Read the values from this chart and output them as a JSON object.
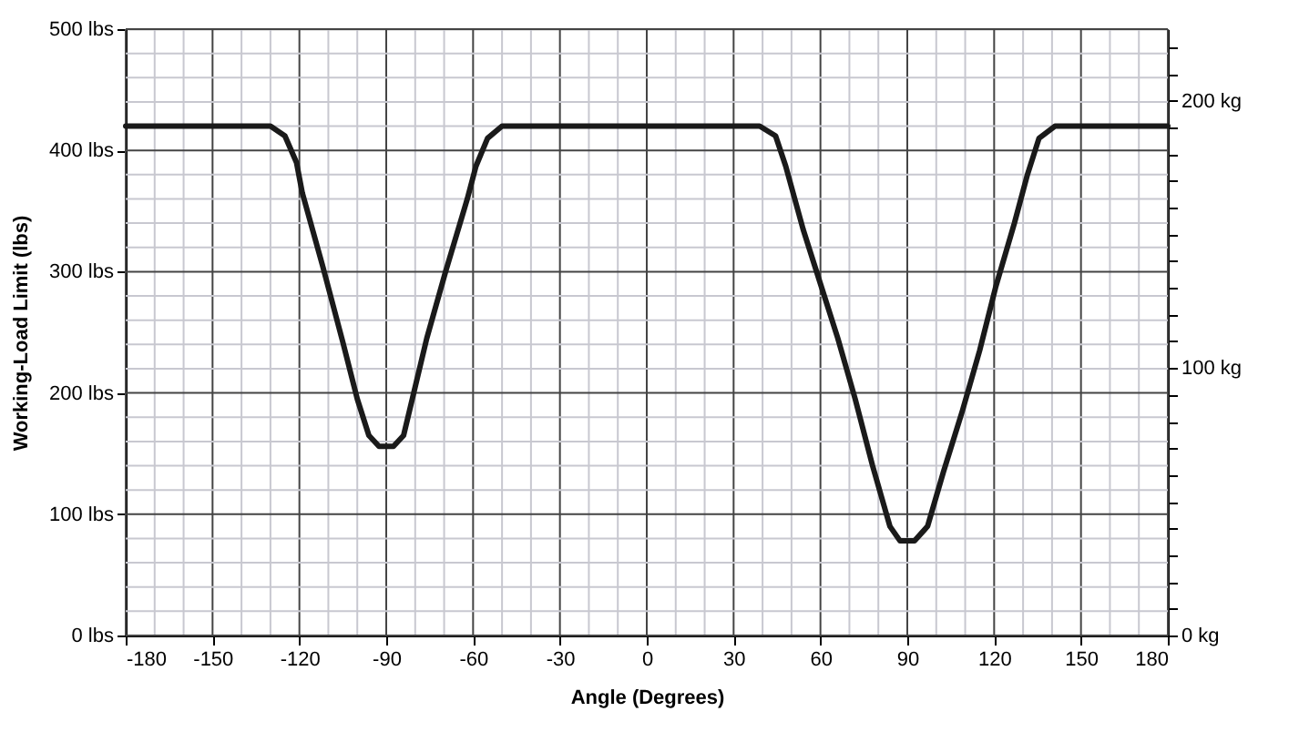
{
  "chart_data": {
    "type": "line",
    "xlabel": "Angle (Degrees)",
    "ylabel": "Working-Load Limit (lbs)",
    "xlim": [
      -180,
      180
    ],
    "xticks": [
      -180,
      {
        "value": -170,
        "label": null
      },
      {
        "value": -160,
        "label": null
      },
      -150,
      {
        "value": -140,
        "label": null
      },
      {
        "value": -130,
        "label": null
      },
      -120,
      {
        "value": -110,
        "label": null
      },
      {
        "value": -100,
        "label": null
      },
      -90,
      {
        "value": -80,
        "label": null
      },
      {
        "value": -70,
        "label": null
      },
      -60,
      {
        "value": -50,
        "label": null
      },
      {
        "value": -40,
        "label": null
      },
      -30,
      {
        "value": -20,
        "label": null
      },
      {
        "value": -10,
        "label": null
      },
      0,
      {
        "value": 10,
        "label": null
      },
      {
        "value": 20,
        "label": null
      },
      30,
      {
        "value": 40,
        "label": null
      },
      {
        "value": 50,
        "label": null
      },
      60,
      {
        "value": 70,
        "label": null
      },
      {
        "value": 80,
        "label": null
      },
      90,
      {
        "value": 100,
        "label": null
      },
      {
        "value": 110,
        "label": null
      },
      120,
      {
        "value": 130,
        "label": null
      },
      {
        "value": 140,
        "label": null
      },
      150,
      {
        "value": 160,
        "label": null
      },
      {
        "value": 170,
        "label": null
      },
      180
    ],
    "ylim": [
      0,
      500
    ],
    "yticks": [
      {
        "value": 0,
        "label": "0 lbs"
      },
      {
        "value": 20,
        "label": null
      },
      {
        "value": 40,
        "label": null
      },
      {
        "value": 60,
        "label": null
      },
      {
        "value": 80,
        "label": null
      },
      {
        "value": 100,
        "label": "100 lbs"
      },
      {
        "value": 120,
        "label": null
      },
      {
        "value": 140,
        "label": null
      },
      {
        "value": 160,
        "label": null
      },
      {
        "value": 180,
        "label": null
      },
      {
        "value": 200,
        "label": "200 lbs"
      },
      {
        "value": 220,
        "label": null
      },
      {
        "value": 240,
        "label": null
      },
      {
        "value": 260,
        "label": null
      },
      {
        "value": 280,
        "label": null
      },
      {
        "value": 300,
        "label": "300 lbs"
      },
      {
        "value": 320,
        "label": null
      },
      {
        "value": 340,
        "label": null
      },
      {
        "value": 360,
        "label": null
      },
      {
        "value": 380,
        "label": null
      },
      {
        "value": 400,
        "label": "400 lbs"
      },
      {
        "value": 420,
        "label": null
      },
      {
        "value": 440,
        "label": null
      },
      {
        "value": 460,
        "label": null
      },
      {
        "value": 480,
        "label": null
      },
      {
        "value": 500,
        "label": "500 lbs"
      }
    ],
    "y2lim": [
      0,
      226.8
    ],
    "y2ticks": [
      {
        "value": 0,
        "label": "0 kg"
      },
      {
        "value": 10,
        "label": null
      },
      {
        "value": 20,
        "label": null
      },
      {
        "value": 30,
        "label": null
      },
      {
        "value": 40,
        "label": null
      },
      {
        "value": 50,
        "label": null
      },
      {
        "value": 60,
        "label": null
      },
      {
        "value": 70,
        "label": null
      },
      {
        "value": 80,
        "label": null
      },
      {
        "value": 90,
        "label": null
      },
      {
        "value": 100,
        "label": "100 kg"
      },
      {
        "value": 110,
        "label": null
      },
      {
        "value": 120,
        "label": null
      },
      {
        "value": 130,
        "label": null
      },
      {
        "value": 140,
        "label": null
      },
      {
        "value": 150,
        "label": null
      },
      {
        "value": 160,
        "label": null
      },
      {
        "value": 170,
        "label": null
      },
      {
        "value": 180,
        "label": null
      },
      {
        "value": 190,
        "label": null
      },
      {
        "value": 200,
        "label": "200 kg"
      },
      {
        "value": 210,
        "label": null
      },
      {
        "value": 220,
        "label": null
      }
    ],
    "grid": true,
    "marker": "none",
    "line_style": "solid",
    "x": [
      -180,
      -130,
      -125,
      -121,
      -119,
      -112,
      -105,
      -100,
      -96,
      -92.5,
      -87.5,
      -84,
      -81,
      -76,
      -69.5,
      -62,
      -59,
      -55,
      -50,
      39,
      44.5,
      48,
      54,
      60,
      66,
      72,
      78,
      84,
      87.5,
      92.5,
      97,
      102.5,
      109,
      115,
      120.5,
      127,
      131.5,
      135.5,
      141,
      180
    ],
    "series": [
      {
        "color": "#1a1a1a",
        "values": [
          420,
          420,
          412,
          390,
          365,
          305,
          242,
          195,
          165,
          156,
          156,
          165,
          195,
          245,
          300,
          360,
          387,
          410,
          420,
          420,
          412,
          387,
          335,
          290,
          245,
          195,
          140,
          90,
          78,
          78,
          90,
          135,
          185,
          235,
          287,
          340,
          380,
          410,
          420,
          420
        ]
      }
    ]
  }
}
